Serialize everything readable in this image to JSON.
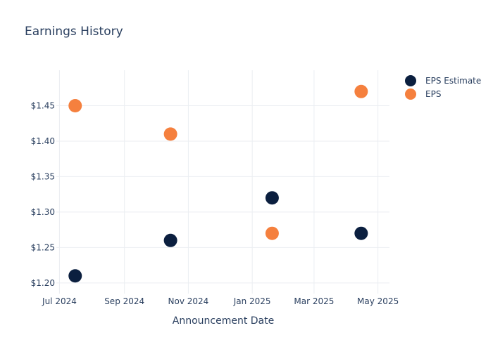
{
  "chart_data": {
    "type": "scatter",
    "title": "Earnings History",
    "xlabel": "Announcement Date",
    "ylabel": "",
    "x_ticks": [
      "Jul 2024",
      "Sep 2024",
      "Nov 2024",
      "Jan 2025",
      "Mar 2025",
      "May 2025"
    ],
    "y_ticks": [
      "$1.20",
      "$1.25",
      "$1.30",
      "$1.35",
      "$1.40",
      "$1.45"
    ],
    "ylim": [
      1.185,
      1.5
    ],
    "xlim": [
      "2024-06-28",
      "2025-05-12"
    ],
    "grid": true,
    "legend_position": "top-right",
    "series": [
      {
        "name": "EPS Estimate",
        "color": "#0b1f3f",
        "points": [
          {
            "x": "2024-07-16",
            "y": 1.21
          },
          {
            "x": "2024-10-15",
            "y": 1.26
          },
          {
            "x": "2025-01-20",
            "y": 1.32
          },
          {
            "x": "2025-04-15",
            "y": 1.27
          }
        ]
      },
      {
        "name": "EPS",
        "color": "#f5803e",
        "points": [
          {
            "x": "2024-07-16",
            "y": 1.45
          },
          {
            "x": "2024-10-15",
            "y": 1.41
          },
          {
            "x": "2025-01-20",
            "y": 1.27
          },
          {
            "x": "2025-04-15",
            "y": 1.47
          }
        ]
      }
    ]
  }
}
